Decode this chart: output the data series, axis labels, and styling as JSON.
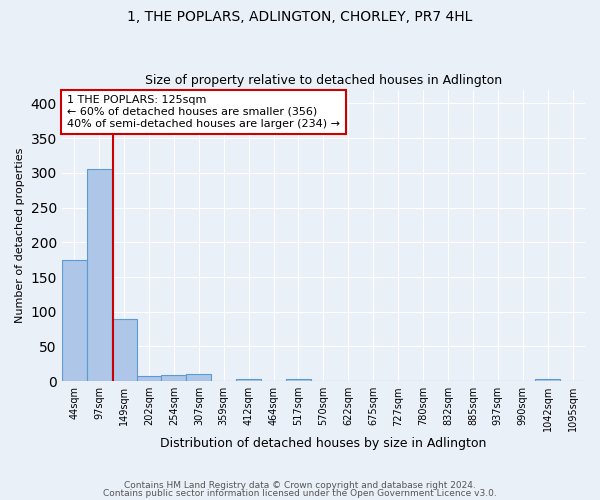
{
  "title": "1, THE POPLARS, ADLINGTON, CHORLEY, PR7 4HL",
  "subtitle": "Size of property relative to detached houses in Adlington",
  "xlabel": "Distribution of detached houses by size in Adlington",
  "ylabel": "Number of detached properties",
  "footnote1": "Contains HM Land Registry data © Crown copyright and database right 2024.",
  "footnote2": "Contains public sector information licensed under the Open Government Licence v3.0.",
  "bin_labels": [
    "44sqm",
    "97sqm",
    "149sqm",
    "202sqm",
    "254sqm",
    "307sqm",
    "359sqm",
    "412sqm",
    "464sqm",
    "517sqm",
    "570sqm",
    "622sqm",
    "675sqm",
    "727sqm",
    "780sqm",
    "832sqm",
    "885sqm",
    "937sqm",
    "990sqm",
    "1042sqm",
    "1095sqm"
  ],
  "bar_values": [
    175,
    305,
    90,
    8,
    9,
    10,
    0,
    3,
    0,
    3,
    0,
    0,
    0,
    0,
    0,
    0,
    0,
    0,
    0,
    3,
    0
  ],
  "bar_color": "#aec6e8",
  "bar_edge_color": "#5b9bd5",
  "pct_smaller": 60,
  "n_smaller": 356,
  "pct_larger_semi": 40,
  "n_larger_semi": 234,
  "vline_color": "#cc0000",
  "annotation_box_color": "#cc0000",
  "ylim": [
    0,
    420
  ],
  "yticks": [
    0,
    50,
    100,
    150,
    200,
    250,
    300,
    350,
    400
  ],
  "bg_color": "#eaf0f8",
  "plot_bg_color": "#eaf0f8",
  "grid_color": "#ffffff",
  "title_fontsize": 10,
  "subtitle_fontsize": 9,
  "ylabel_fontsize": 8,
  "xlabel_fontsize": 9
}
